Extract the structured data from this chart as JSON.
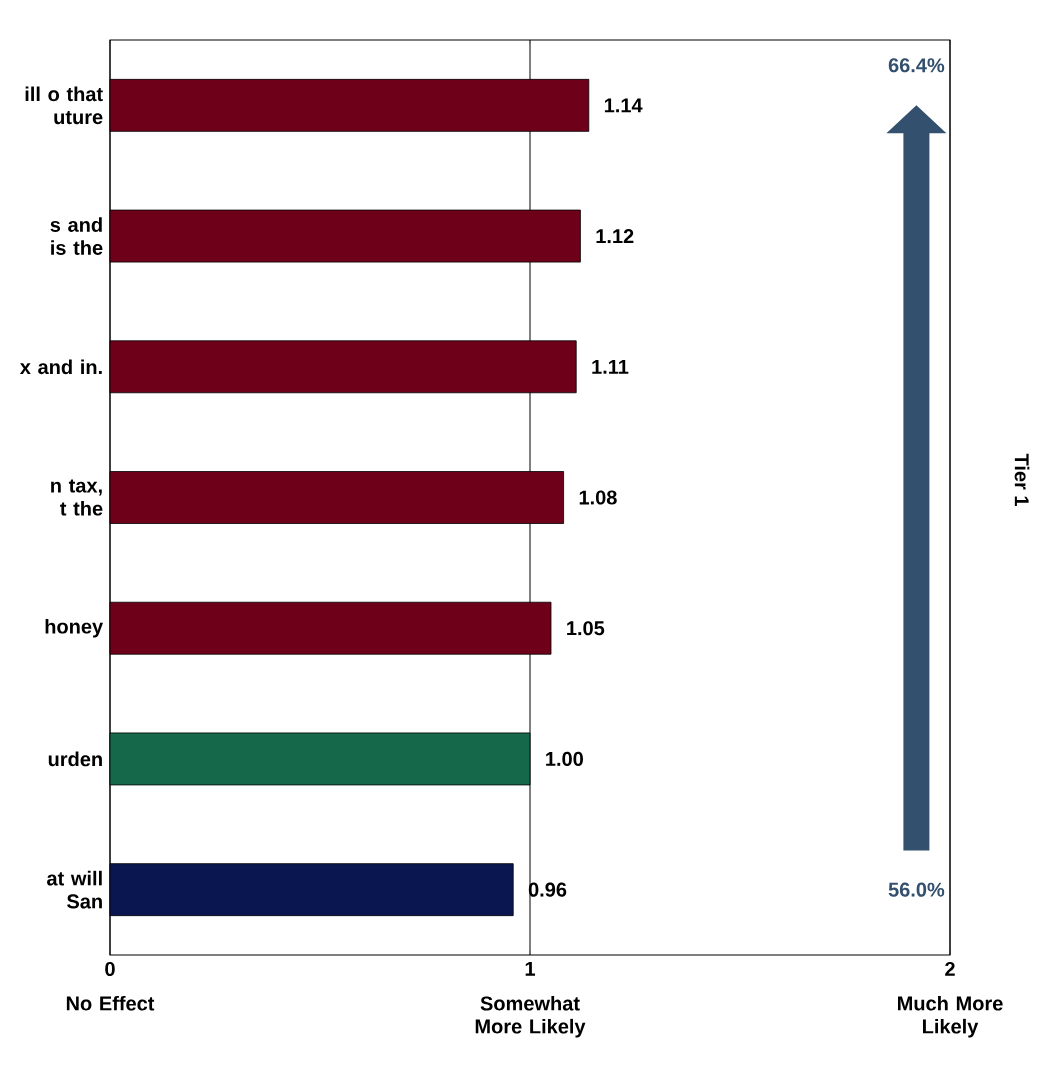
{
  "chart_data": {
    "type": "bar",
    "orientation": "horizontal",
    "categories": [
      "ill o that uture",
      "s and is the",
      "x and in.",
      "n tax, t the",
      "honey",
      "urden",
      "at will San"
    ],
    "values": [
      1.14,
      1.12,
      1.11,
      1.08,
      1.05,
      1.0,
      0.96
    ],
    "value_labels": [
      "1.14",
      "1.12",
      "1.11",
      "1.08",
      "1.05",
      "1.00",
      "0.96"
    ],
    "colors": [
      "#6e0019",
      "#6e0019",
      "#6e0019",
      "#6e0019",
      "#6e0019",
      "#16684a",
      "#0a1650"
    ],
    "xlim": [
      0,
      2
    ],
    "xticks": [
      0,
      1,
      2
    ],
    "grid": "x",
    "annotations": [
      "66.4%",
      "56.0%",
      "Tier 1",
      "No Effect",
      "Somewhat More Likely",
      "Much More Likely"
    ]
  }
}
